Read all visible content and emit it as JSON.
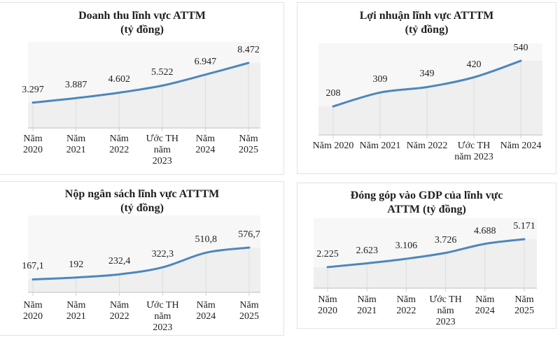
{
  "page": {
    "background": "#ffffff"
  },
  "colors": {
    "series_line": "#4e87ba",
    "panel_border": "#e2e2e2",
    "plot_fill": "#f7f7f7",
    "area_fill": "rgba(90,90,90,0.05)",
    "drop_line": "#dcdcdc",
    "axis_tick": "#cfcfcf",
    "baseline": "#c9c9c9",
    "text": "#1f1f1f"
  },
  "chart_data": [
    {
      "id": "revenue",
      "type": "line",
      "title": "Doanh thu lĩnh vực ATTM",
      "subtitle": "(tỷ đồng)",
      "categories": [
        "Năm\n2020",
        "Năm\n2021",
        "Năm\n2022",
        "Ước TH\nnăm\n2023",
        "Năm\n2024",
        "Năm\n2025"
      ],
      "values": [
        3297,
        3887,
        4602,
        5522,
        6947,
        8472
      ],
      "labels": [
        "3.297",
        "3.887",
        "4.602",
        "5.522",
        "6.947",
        "8.472"
      ],
      "xlabel": "",
      "ylabel": "tỷ đồng",
      "ylim": [
        0,
        11200
      ],
      "grid": "drop-lines",
      "legend": "none"
    },
    {
      "id": "profit",
      "type": "line",
      "title": "Lợi nhuận lĩnh vực ATTTM",
      "subtitle": "(tỷ đồng)",
      "categories": [
        "Năm 2020",
        "Năm 2021",
        "Năm 2022",
        "Ước TH\nnăm 2023",
        "Năm 2024"
      ],
      "values": [
        208,
        309,
        349,
        420,
        540
      ],
      "labels": [
        "208",
        "309",
        "349",
        "420",
        "540"
      ],
      "xlabel": "",
      "ylabel": "tỷ đồng",
      "ylim": [
        0,
        667
      ],
      "grid": "drop-lines",
      "legend": "none"
    },
    {
      "id": "budget",
      "type": "line",
      "title": "Nộp ngân sách lĩnh vực ATTTM",
      "subtitle": "(tỷ đồng)",
      "categories": [
        "Năm\n2020",
        "Năm\n2021",
        "Năm\n2022",
        "Ước TH\nnăm\n2023",
        "Năm\n2024",
        "Năm\n2025"
      ],
      "values": [
        167.1,
        192,
        232.4,
        322.3,
        510.8,
        576.7
      ],
      "labels": [
        "167,1",
        "192",
        "232,4",
        "322,3",
        "510,8",
        "576,7"
      ],
      "xlabel": "",
      "ylabel": "tỷ đồng",
      "ylim": [
        0,
        991
      ],
      "grid": "drop-lines",
      "legend": "none"
    },
    {
      "id": "gdp",
      "type": "line",
      "title": "Đóng góp vào GDP của lĩnh vực",
      "subtitle": "ATTM  (tỷ đồng)",
      "categories": [
        "Năm\n2020",
        "Năm\n2021",
        "Năm\n2022",
        "Ước TH\nnăm\n2023",
        "Năm\n2024",
        "Năm\n2025"
      ],
      "values": [
        2225,
        2623,
        3106,
        3726,
        4688,
        5171
      ],
      "labels": [
        "2.225",
        "2.623",
        "3.106",
        "3.726",
        "4.688",
        "5.171"
      ],
      "xlabel": "",
      "ylabel": "tỷ đồng",
      "ylim": [
        0,
        7390
      ],
      "grid": "drop-lines",
      "legend": "none"
    }
  ]
}
